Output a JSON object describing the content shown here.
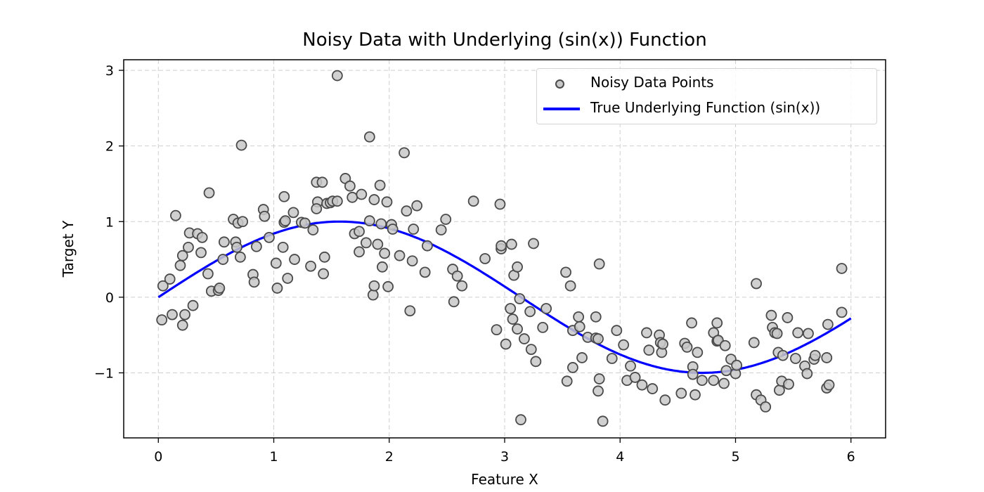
{
  "chart_data": {
    "type": "scatter",
    "title": "Noisy Data with Underlying (sin(x)) Function",
    "xlabel": "Feature X",
    "ylabel": "Target Y",
    "xlim": [
      -0.3,
      6.3
    ],
    "ylim": [
      -1.86,
      3.14
    ],
    "xticks": [
      0,
      1,
      2,
      3,
      4,
      5,
      6
    ],
    "yticks": [
      -1,
      0,
      1,
      2,
      3
    ],
    "xtick_labels": [
      "0",
      "1",
      "2",
      "3",
      "4",
      "5",
      "6"
    ],
    "ytick_labels": [
      "−1",
      "0",
      "1",
      "2",
      "3"
    ],
    "grid": true,
    "legend_position": "upper right",
    "legend": [
      "Noisy Data Points",
      "True Underlying Function (sin(x))"
    ],
    "series": [
      {
        "name": "Noisy Data Points",
        "kind": "scatter",
        "color": "#c8c8c8",
        "edgecolor": "#4a4a4a",
        "points": [
          [
            0.03,
            -0.3
          ],
          [
            0.04,
            0.15
          ],
          [
            0.1,
            0.24
          ],
          [
            0.12,
            -0.23
          ],
          [
            0.15,
            1.08
          ],
          [
            0.19,
            0.42
          ],
          [
            0.21,
            0.55
          ],
          [
            0.21,
            -0.37
          ],
          [
            0.23,
            -0.23
          ],
          [
            0.26,
            0.66
          ],
          [
            0.27,
            0.85
          ],
          [
            0.3,
            -0.11
          ],
          [
            0.34,
            0.84
          ],
          [
            0.37,
            0.59
          ],
          [
            0.38,
            0.79
          ],
          [
            0.43,
            0.31
          ],
          [
            0.44,
            1.38
          ],
          [
            0.46,
            0.08
          ],
          [
            0.52,
            0.09
          ],
          [
            0.53,
            0.12
          ],
          [
            0.56,
            0.5
          ],
          [
            0.57,
            0.73
          ],
          [
            0.65,
            1.03
          ],
          [
            0.67,
            0.73
          ],
          [
            0.68,
            0.66
          ],
          [
            0.69,
            0.98
          ],
          [
            0.71,
            0.53
          ],
          [
            0.72,
            2.01
          ],
          [
            0.73,
            1.0
          ],
          [
            0.82,
            0.3
          ],
          [
            0.83,
            0.2
          ],
          [
            0.85,
            0.67
          ],
          [
            0.91,
            1.16
          ],
          [
            0.92,
            1.07
          ],
          [
            0.96,
            0.79
          ],
          [
            1.02,
            0.45
          ],
          [
            1.03,
            0.12
          ],
          [
            1.08,
            0.66
          ],
          [
            1.09,
            1.33
          ],
          [
            1.09,
            0.99
          ],
          [
            1.1,
            1.01
          ],
          [
            1.12,
            0.25
          ],
          [
            1.17,
            1.12
          ],
          [
            1.18,
            0.5
          ],
          [
            1.24,
            0.99
          ],
          [
            1.27,
            0.98
          ],
          [
            1.32,
            0.41
          ],
          [
            1.34,
            0.89
          ],
          [
            1.37,
            1.52
          ],
          [
            1.38,
            1.26
          ],
          [
            1.37,
            1.17
          ],
          [
            1.42,
            1.52
          ],
          [
            1.43,
            0.31
          ],
          [
            1.44,
            0.53
          ],
          [
            1.46,
            1.24
          ],
          [
            1.49,
            1.25
          ],
          [
            1.51,
            1.27
          ],
          [
            1.55,
            2.93
          ],
          [
            1.55,
            1.27
          ],
          [
            1.62,
            1.57
          ],
          [
            1.66,
            1.47
          ],
          [
            1.68,
            1.32
          ],
          [
            1.7,
            0.84
          ],
          [
            1.74,
            0.6
          ],
          [
            1.74,
            0.87
          ],
          [
            1.76,
            1.36
          ],
          [
            1.8,
            0.72
          ],
          [
            1.83,
            2.12
          ],
          [
            1.83,
            1.01
          ],
          [
            1.86,
            0.03
          ],
          [
            1.87,
            0.15
          ],
          [
            1.87,
            1.29
          ],
          [
            1.9,
            0.7
          ],
          [
            1.92,
            1.48
          ],
          [
            1.93,
            0.97
          ],
          [
            1.94,
            0.4
          ],
          [
            1.96,
            0.58
          ],
          [
            1.98,
            1.26
          ],
          [
            1.99,
            0.14
          ],
          [
            2.02,
            0.96
          ],
          [
            2.03,
            0.9
          ],
          [
            2.09,
            0.55
          ],
          [
            2.13,
            1.91
          ],
          [
            2.15,
            1.14
          ],
          [
            2.18,
            -0.18
          ],
          [
            2.2,
            0.48
          ],
          [
            2.21,
            0.9
          ],
          [
            2.24,
            1.21
          ],
          [
            2.31,
            0.33
          ],
          [
            2.33,
            0.68
          ],
          [
            2.45,
            0.89
          ],
          [
            2.49,
            1.03
          ],
          [
            2.55,
            0.37
          ],
          [
            2.56,
            -0.06
          ],
          [
            2.59,
            0.28
          ],
          [
            2.63,
            0.15
          ],
          [
            2.73,
            1.27
          ],
          [
            2.83,
            0.51
          ],
          [
            2.93,
            -0.43
          ],
          [
            2.96,
            1.23
          ],
          [
            2.97,
            0.64
          ],
          [
            2.97,
            0.68
          ],
          [
            3.01,
            -0.62
          ],
          [
            3.06,
            0.7
          ],
          [
            3.05,
            -0.15
          ],
          [
            3.07,
            -0.29
          ],
          [
            3.08,
            0.29
          ],
          [
            3.11,
            -0.42
          ],
          [
            3.11,
            0.4
          ],
          [
            3.14,
            -1.62
          ],
          [
            3.13,
            -0.02
          ],
          [
            3.17,
            -0.55
          ],
          [
            3.22,
            -0.19
          ],
          [
            3.23,
            -0.69
          ],
          [
            3.25,
            0.71
          ],
          [
            3.27,
            -0.85
          ],
          [
            3.33,
            -0.4
          ],
          [
            3.36,
            -0.15
          ],
          [
            3.53,
            0.33
          ],
          [
            3.54,
            -1.11
          ],
          [
            3.57,
            0.15
          ],
          [
            3.59,
            -0.93
          ],
          [
            3.59,
            -0.44
          ],
          [
            3.64,
            -0.26
          ],
          [
            3.65,
            -0.39
          ],
          [
            3.67,
            -0.8
          ],
          [
            3.72,
            -0.53
          ],
          [
            3.79,
            -0.54
          ],
          [
            3.79,
            -0.26
          ],
          [
            3.81,
            -0.55
          ],
          [
            3.81,
            -1.24
          ],
          [
            3.82,
            -1.08
          ],
          [
            3.82,
            0.44
          ],
          [
            3.85,
            -1.64
          ],
          [
            3.93,
            -0.81
          ],
          [
            3.97,
            -0.44
          ],
          [
            4.03,
            -0.63
          ],
          [
            4.06,
            -1.1
          ],
          [
            4.09,
            -0.91
          ],
          [
            4.13,
            -1.06
          ],
          [
            4.19,
            -1.16
          ],
          [
            4.23,
            -0.47
          ],
          [
            4.25,
            -0.7
          ],
          [
            4.28,
            -1.21
          ],
          [
            4.34,
            -0.5
          ],
          [
            4.35,
            -0.6
          ],
          [
            4.36,
            -0.73
          ],
          [
            4.37,
            -0.62
          ],
          [
            4.39,
            -1.36
          ],
          [
            4.53,
            -1.27
          ],
          [
            4.56,
            -0.61
          ],
          [
            4.58,
            -0.66
          ],
          [
            4.62,
            -0.34
          ],
          [
            4.63,
            -0.92
          ],
          [
            4.63,
            -1.02
          ],
          [
            4.65,
            -1.29
          ],
          [
            4.67,
            -0.73
          ],
          [
            4.71,
            -1.1
          ],
          [
            4.81,
            -1.1
          ],
          [
            4.81,
            -0.47
          ],
          [
            4.84,
            -0.34
          ],
          [
            4.84,
            -0.58
          ],
          [
            4.85,
            -0.57
          ],
          [
            4.91,
            -0.64
          ],
          [
            4.9,
            -1.14
          ],
          [
            4.92,
            -0.97
          ],
          [
            4.96,
            -0.82
          ],
          [
            5.0,
            -1.01
          ],
          [
            5.01,
            -0.9
          ],
          [
            5.16,
            -0.6
          ],
          [
            5.18,
            0.18
          ],
          [
            5.18,
            -1.29
          ],
          [
            5.22,
            -1.36
          ],
          [
            5.26,
            -1.45
          ],
          [
            5.31,
            -0.24
          ],
          [
            5.32,
            -0.4
          ],
          [
            5.34,
            -0.47
          ],
          [
            5.36,
            -0.48
          ],
          [
            5.37,
            -0.73
          ],
          [
            5.38,
            -1.23
          ],
          [
            5.4,
            -1.11
          ],
          [
            5.41,
            -0.77
          ],
          [
            5.45,
            -0.27
          ],
          [
            5.46,
            -1.15
          ],
          [
            5.52,
            -0.81
          ],
          [
            5.54,
            -0.47
          ],
          [
            5.6,
            -0.91
          ],
          [
            5.62,
            -1.01
          ],
          [
            5.63,
            -0.48
          ],
          [
            5.68,
            -0.82
          ],
          [
            5.69,
            -0.77
          ],
          [
            5.79,
            -1.2
          ],
          [
            5.79,
            -0.8
          ],
          [
            5.81,
            -1.16
          ],
          [
            5.8,
            -0.36
          ],
          [
            5.92,
            0.38
          ],
          [
            5.92,
            -0.2
          ]
        ]
      },
      {
        "name": "True Underlying Function (sin(x))",
        "kind": "line",
        "color": "#0000ff",
        "function": "sin(x)",
        "x_range": [
          0,
          6
        ]
      }
    ]
  },
  "legend": {
    "items": [
      {
        "label": "Noisy Data Points"
      },
      {
        "label": "True Underlying Function (sin(x))"
      }
    ]
  }
}
